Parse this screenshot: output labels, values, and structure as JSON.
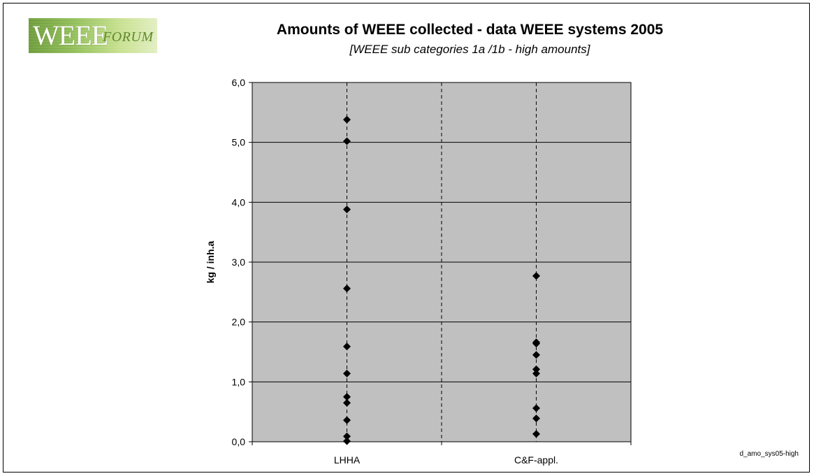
{
  "logo": {
    "main_text": "WEEE",
    "sub_text": "FORUM"
  },
  "footnote": "d_amo_sys05-high",
  "chart_data": {
    "type": "scatter",
    "title": "Amounts of WEEE collected - data WEEE systems 2005",
    "subtitle": "[WEEE sub categories 1a /1b - high amounts]",
    "xlabel": "",
    "ylabel": "kg / inh.a",
    "categories": [
      "LHHA",
      "C&F-appl."
    ],
    "ylim": [
      0,
      6
    ],
    "yticks": [
      "0,0",
      "1,0",
      "2,0",
      "3,0",
      "4,0",
      "5,0",
      "6,0"
    ],
    "grid": true,
    "legend": "none",
    "plot_background": "#c0c0c0",
    "marker_color": "#000000",
    "series": [
      {
        "category": "LHHA",
        "values": [
          5.38,
          5.02,
          3.88,
          2.56,
          1.59,
          1.14,
          0.75,
          0.65,
          0.36,
          0.09,
          0.01
        ]
      },
      {
        "category": "C&F-appl.",
        "values": [
          2.77,
          1.66,
          1.64,
          1.45,
          1.21,
          1.14,
          0.56,
          0.39,
          0.13
        ]
      }
    ]
  }
}
